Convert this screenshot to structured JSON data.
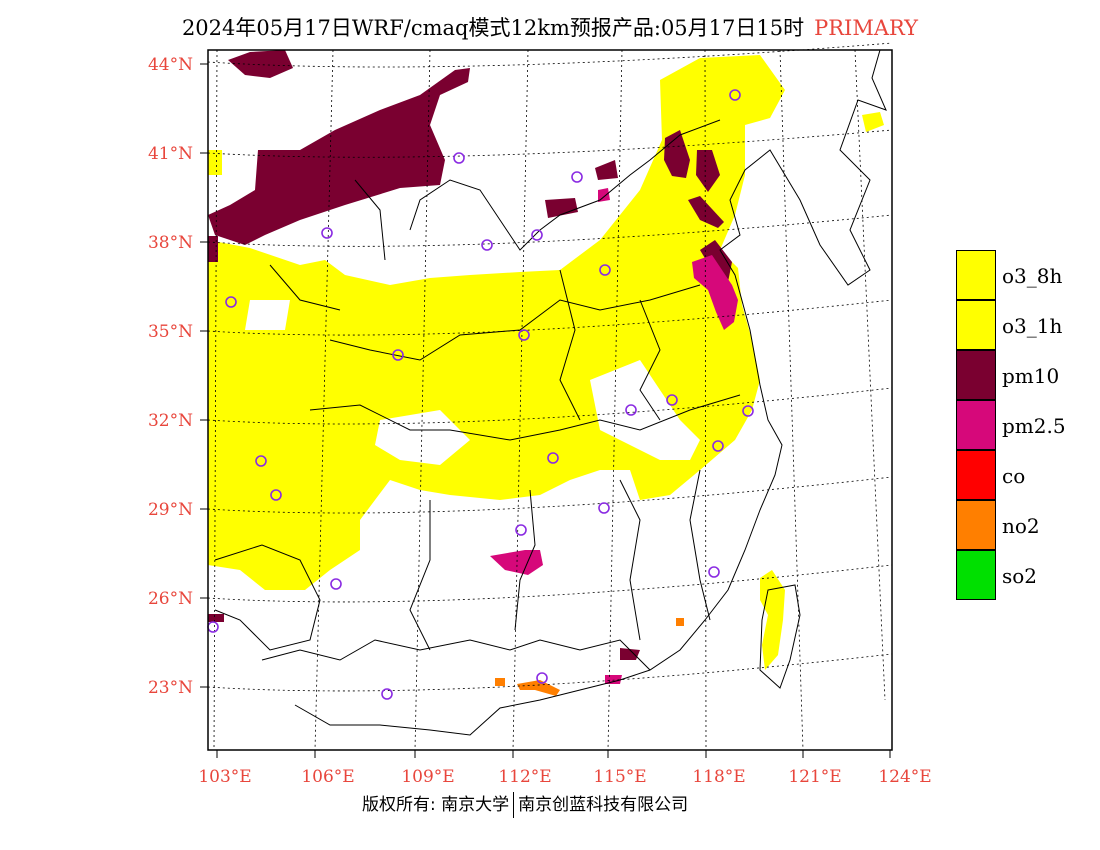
{
  "title": {
    "main": "2024年05月17日WRF/cmaq模式12km预报产品:05月17日15时",
    "tag": "PRIMARY"
  },
  "axes": {
    "lat_labels": [
      "44°N",
      "41°N",
      "38°N",
      "35°N",
      "32°N",
      "29°N",
      "26°N",
      "23°N"
    ],
    "lon_labels": [
      "103°E",
      "106°E",
      "109°E",
      "112°E",
      "115°E",
      "118°E",
      "121°E",
      "124°E"
    ]
  },
  "legend": [
    {
      "label": "o3_8h",
      "color": "#ffff00"
    },
    {
      "label": "o3_1h",
      "color": "#ffff00"
    },
    {
      "label": "pm10",
      "color": "#7a0030"
    },
    {
      "label": "pm2.5",
      "color": "#d6087a"
    },
    {
      "label": "co",
      "color": "#ff0000"
    },
    {
      "label": "no2",
      "color": "#ff7f00"
    },
    {
      "label": "so2",
      "color": "#00e000"
    }
  ],
  "footer": {
    "left": "版权所有: 南京大学",
    "right": "南京创蓝科技有限公司"
  },
  "colors": {
    "o3": "#ffff00",
    "pm10": "#7a0030",
    "pm25": "#d6087a",
    "no2": "#ff7f00",
    "station": "#8a2be2",
    "tick_label": "#e8463c"
  }
}
